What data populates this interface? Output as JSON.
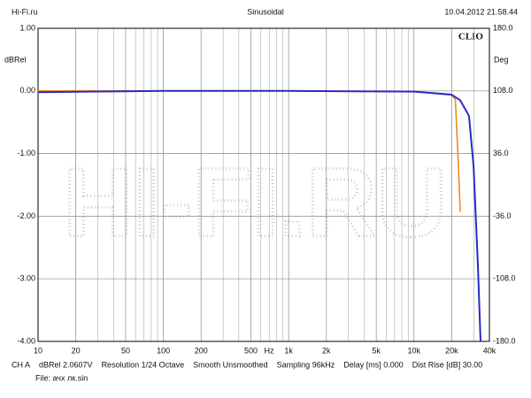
{
  "chart_data": {
    "type": "line",
    "header_left": "Hi-Fi.ru",
    "title": "Sinusoidal",
    "header_right": "10.04.2012 21.58.44",
    "brand": "CLIO",
    "watermark": "HI-FI.RU",
    "ylabel": "dBRel",
    "y2label": "Deg",
    "x_unit": "Hz",
    "log_x": true,
    "grid": true,
    "xlim": [
      10,
      40000
    ],
    "xticks": [
      10,
      20,
      50,
      100,
      200,
      500,
      {
        "value": 1000,
        "label": "1k"
      },
      {
        "value": 2000,
        "label": "2k"
      },
      {
        "value": 5000,
        "label": "5k"
      },
      {
        "value": 10000,
        "label": "10k"
      },
      {
        "value": 20000,
        "label": "20k"
      },
      {
        "value": 40000,
        "label": "40k"
      }
    ],
    "x_minor_grid": [
      30,
      40,
      60,
      70,
      80,
      90,
      300,
      400,
      600,
      700,
      800,
      900,
      3000,
      4000,
      6000,
      7000,
      8000,
      9000,
      30000
    ],
    "ylim": [
      -4,
      1
    ],
    "yticks": [
      {
        "value": 1,
        "label": "1.00"
      },
      {
        "value": 0,
        "label": "0.00"
      },
      {
        "value": -1,
        "label": "-1.00"
      },
      {
        "value": -2,
        "label": "-2.00"
      },
      {
        "value": -3,
        "label": "-3.00"
      },
      {
        "value": -4,
        "label": "-4.00"
      }
    ],
    "y2lim": [
      -180,
      180
    ],
    "y2ticks": [
      {
        "value": 180,
        "label": "180.0"
      },
      {
        "value": 108,
        "label": "108.0"
      },
      {
        "value": 36,
        "label": "36.0"
      },
      {
        "value": -36,
        "label": "-36.0"
      },
      {
        "value": -108,
        "label": "-108.0"
      },
      {
        "value": -180,
        "label": "-180.0"
      }
    ],
    "series": [
      {
        "name": "dBRel",
        "color": "#2a2ac8",
        "x": [
          10,
          30,
          100,
          1000,
          10000,
          20000,
          23400,
          27500,
          29900,
          32400,
          34000
        ],
        "values": [
          -0.02,
          -0.01,
          0,
          0,
          -0.01,
          -0.06,
          -0.15,
          -0.4,
          -1.2,
          -2.8,
          -4.0
        ]
      },
      {
        "name": "Deg",
        "color": "#f08a1c",
        "axis": "y2",
        "x": [
          10,
          1000,
          10000,
          20000,
          21400,
          22500,
          23400
        ],
        "values": [
          108,
          108,
          107,
          104,
          98,
          30,
          -31
        ]
      }
    ],
    "footer": [
      "CH A",
      "dBRel 2.0607V",
      "Resolution 1/24 Octave",
      "Smooth Unsmoothed",
      "Sampling 96kHz",
      "Delay [ms] 0.000",
      "Dist Rise [dB] 30.00"
    ],
    "file": "File: ачх лк.sin"
  }
}
